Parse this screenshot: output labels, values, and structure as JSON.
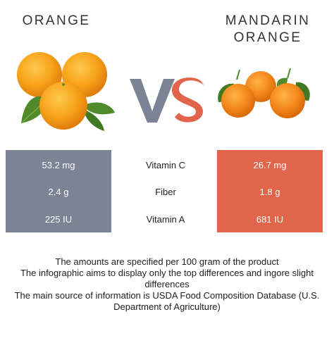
{
  "left": {
    "title": "ORANGE",
    "image_name": "orange-fruit-image",
    "values": [
      "53.2 mg",
      "2.4 g",
      "225 IU"
    ],
    "color": "#7b8394"
  },
  "right": {
    "title_line1": "MANDARIN",
    "title_line2": "ORANGE",
    "image_name": "mandarin-fruit-image",
    "values": [
      "26.7 mg",
      "1.8 g",
      "681 IU"
    ],
    "color": "#e0654a"
  },
  "vs": {
    "v_color": "#7b8394",
    "s_color": "#e0654a"
  },
  "nutrients": [
    "Vitamin C",
    "Fiber",
    "Vitamin A"
  ],
  "notes": [
    "The amounts are specified per 100 gram of the product",
    "The infographic aims to display only the top differences and ingore slight differences",
    "The main source of information is USDA Food Composition Database (U.S. Department of Agriculture)"
  ]
}
